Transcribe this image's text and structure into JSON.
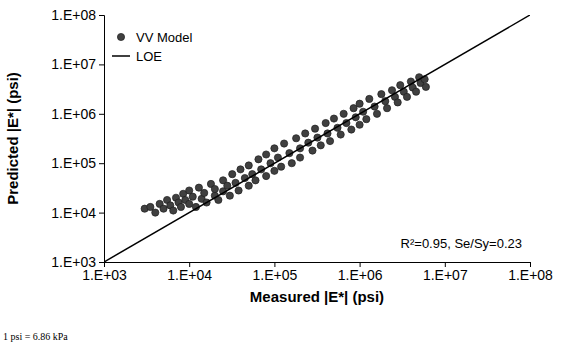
{
  "chart_data": {
    "type": "scatter",
    "x_label": "Measured |E*| (psi)",
    "y_label": "Predicted |E*| (psi)",
    "log": true,
    "grid": false,
    "legend": "top-left",
    "annotations": [
      "R²=0.95, Se/Sy=0.23",
      "1 psi = 6.86 kPa"
    ],
    "xlim": [
      1000,
      100000000
    ],
    "ylim": [
      1000,
      100000000
    ],
    "xticks": [
      {
        "value": 1000,
        "label": "1.E+03"
      },
      {
        "value": 10000,
        "label": "1.E+04"
      },
      {
        "value": 100000,
        "label": "1.E+05"
      },
      {
        "value": 1000000,
        "label": "1.E+06"
      },
      {
        "value": 10000000,
        "label": "1.E+07"
      },
      {
        "value": 100000000,
        "label": "1.E+08"
      }
    ],
    "yticks": [
      {
        "value": 1000,
        "label": "1.E+03"
      },
      {
        "value": 10000,
        "label": "1.E+04"
      },
      {
        "value": 100000,
        "label": "1.E+05"
      },
      {
        "value": 1000000,
        "label": "1.E+06"
      },
      {
        "value": 10000000,
        "label": "1.E+07"
      },
      {
        "value": 100000000,
        "label": "1.E+08"
      }
    ],
    "series": [
      {
        "name": "VV Model",
        "type": "scatter",
        "color": "#404040",
        "marker": "circle",
        "x": [
          3000,
          3500,
          4000,
          4500,
          5000,
          5500,
          6000,
          6500,
          7000,
          7500,
          8000,
          8500,
          9000,
          10000,
          10000,
          11000,
          12000,
          13000,
          14000,
          15000,
          16000,
          18000,
          20000,
          20000,
          22000,
          25000,
          25000,
          28000,
          30000,
          32000,
          35000,
          38000,
          40000,
          45000,
          50000,
          50000,
          55000,
          60000,
          65000,
          70000,
          80000,
          80000,
          90000,
          100000,
          100000,
          110000,
          120000,
          130000,
          150000,
          160000,
          180000,
          200000,
          200000,
          230000,
          250000,
          280000,
          300000,
          320000,
          350000,
          400000,
          420000,
          450000,
          500000,
          550000,
          600000,
          650000,
          700000,
          800000,
          850000,
          900000,
          1000000,
          1000000,
          1100000,
          1200000,
          1300000,
          1500000,
          1600000,
          1800000,
          2000000,
          2100000,
          2400000,
          2600000,
          2800000,
          3000000,
          3300000,
          3600000,
          4000000,
          4200000,
          4600000,
          5000000,
          5200000,
          5800000,
          6000000
        ],
        "values": [
          12000,
          13000,
          10000,
          15000,
          12000,
          18000,
          14000,
          11000,
          20000,
          16000,
          13000,
          24000,
          18000,
          15000,
          28000,
          21000,
          13000,
          32000,
          19000,
          25000,
          16000,
          38000,
          22000,
          30000,
          18000,
          45000,
          27000,
          35000,
          22000,
          60000,
          40000,
          28000,
          75000,
          50000,
          35000,
          90000,
          60000,
          45000,
          120000,
          75000,
          55000,
          150000,
          100000,
          70000,
          200000,
          130000,
          85000,
          250000,
          160000,
          100000,
          320000,
          200000,
          130000,
          400000,
          260000,
          180000,
          500000,
          330000,
          230000,
          650000,
          400000,
          280000,
          800000,
          520000,
          380000,
          1000000,
          650000,
          480000,
          1300000,
          850000,
          600000,
          1600000,
          1100000,
          780000,
          2000000,
          1400000,
          1000000,
          2500000,
          1800000,
          1300000,
          3000000,
          2200000,
          1700000,
          3800000,
          2800000,
          2200000,
          4500000,
          3400000,
          2800000,
          5500000,
          4200000,
          5000000,
          3500000
        ]
      },
      {
        "name": "LOE",
        "type": "line",
        "color": "#000000",
        "line_style": "solid",
        "x": [
          1000,
          100000000
        ],
        "values": [
          1000,
          100000000
        ]
      }
    ]
  }
}
